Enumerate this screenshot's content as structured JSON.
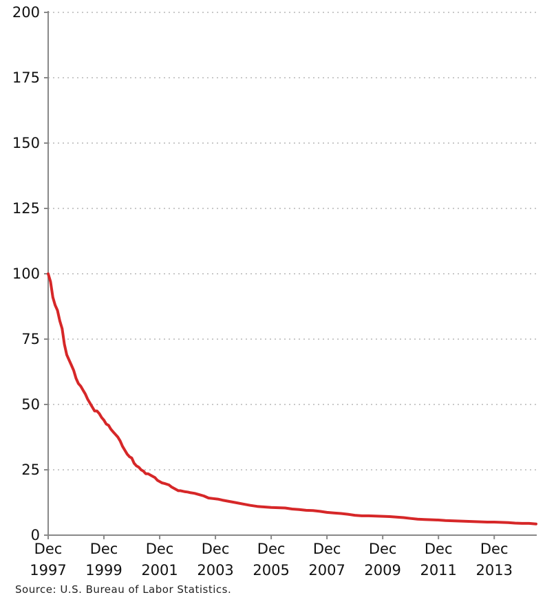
{
  "chart_data": {
    "type": "line",
    "title": "",
    "xlabel": "",
    "ylabel": "",
    "ylim": [
      0,
      200
    ],
    "yticks": [
      0,
      25,
      50,
      75,
      100,
      125,
      150,
      175,
      200
    ],
    "xlim": [
      "Dec 1997",
      "Jun 2015"
    ],
    "xticks": [
      {
        "line1": "Dec",
        "line2": "1997",
        "x": "1997-12"
      },
      {
        "line1": "Dec",
        "line2": "1999",
        "x": "1999-12"
      },
      {
        "line1": "Dec",
        "line2": "2001",
        "x": "2001-12"
      },
      {
        "line1": "Dec",
        "line2": "2003",
        "x": "2003-12"
      },
      {
        "line1": "Dec",
        "line2": "2005",
        "x": "2005-12"
      },
      {
        "line1": "Dec",
        "line2": "2007",
        "x": "2007-12"
      },
      {
        "line1": "Dec",
        "line2": "2009",
        "x": "2009-12"
      },
      {
        "line1": "Dec",
        "line2": "2011",
        "x": "2011-12"
      },
      {
        "line1": "Dec",
        "line2": "2013",
        "x": "2013-12"
      }
    ],
    "grid": "horizontal-dotted",
    "legend": "none",
    "series": [
      {
        "color": "#d62728",
        "points": [
          [
            "1997-12",
            100
          ],
          [
            "1998-01",
            97
          ],
          [
            "1998-02",
            91
          ],
          [
            "1998-03",
            88
          ],
          [
            "1998-04",
            86
          ],
          [
            "1998-05",
            82
          ],
          [
            "1998-06",
            79
          ],
          [
            "1998-07",
            73
          ],
          [
            "1998-08",
            69
          ],
          [
            "1998-09",
            67
          ],
          [
            "1998-10",
            65
          ],
          [
            "1998-11",
            63
          ],
          [
            "1998-12",
            60
          ],
          [
            "1999-01",
            58
          ],
          [
            "1999-02",
            57
          ],
          [
            "1999-03",
            55.5
          ],
          [
            "1999-04",
            54
          ],
          [
            "1999-05",
            52
          ],
          [
            "1999-06",
            50.5
          ],
          [
            "1999-07",
            49
          ],
          [
            "1999-08",
            47.5
          ],
          [
            "1999-09",
            47.5
          ],
          [
            "1999-10",
            46.5
          ],
          [
            "1999-11",
            45
          ],
          [
            "1999-12",
            44
          ],
          [
            "2000-01",
            42.5
          ],
          [
            "2000-02",
            42
          ],
          [
            "2000-03",
            40.5
          ],
          [
            "2000-04",
            39.5
          ],
          [
            "2000-05",
            38.5
          ],
          [
            "2000-06",
            37.5
          ],
          [
            "2000-07",
            36
          ],
          [
            "2000-08",
            34
          ],
          [
            "2000-09",
            32.5
          ],
          [
            "2000-10",
            31
          ],
          [
            "2000-11",
            30
          ],
          [
            "2000-12",
            29.5
          ],
          [
            "2001-01",
            27.5
          ],
          [
            "2001-02",
            26.5
          ],
          [
            "2001-03",
            26
          ],
          [
            "2001-04",
            25
          ],
          [
            "2001-05",
            24.5
          ],
          [
            "2001-06",
            23.5
          ],
          [
            "2001-07",
            23.5
          ],
          [
            "2001-08",
            23
          ],
          [
            "2001-09",
            22.5
          ],
          [
            "2001-10",
            22
          ],
          [
            "2001-11",
            21
          ],
          [
            "2001-12",
            20.5
          ],
          [
            "2002-01",
            20
          ],
          [
            "2002-02",
            19.8
          ],
          [
            "2002-03",
            19.5
          ],
          [
            "2002-04",
            19.2
          ],
          [
            "2002-05",
            18.5
          ],
          [
            "2002-06",
            18
          ],
          [
            "2002-07",
            17.5
          ],
          [
            "2002-08",
            17
          ],
          [
            "2002-09",
            17
          ],
          [
            "2002-10",
            16.8
          ],
          [
            "2002-11",
            16.6
          ],
          [
            "2002-12",
            16.5
          ],
          [
            "2003-01",
            16.3
          ],
          [
            "2003-03",
            16
          ],
          [
            "2003-05",
            15.5
          ],
          [
            "2003-07",
            15
          ],
          [
            "2003-09",
            14.2
          ],
          [
            "2003-11",
            14
          ],
          [
            "2004-01",
            13.8
          ],
          [
            "2004-03",
            13.4
          ],
          [
            "2004-06",
            12.9
          ],
          [
            "2004-09",
            12.4
          ],
          [
            "2004-12",
            11.9
          ],
          [
            "2005-03",
            11.4
          ],
          [
            "2005-06",
            11
          ],
          [
            "2005-09",
            10.8
          ],
          [
            "2005-12",
            10.6
          ],
          [
            "2006-03",
            10.5
          ],
          [
            "2006-06",
            10.4
          ],
          [
            "2006-09",
            10
          ],
          [
            "2006-12",
            9.8
          ],
          [
            "2007-03",
            9.5
          ],
          [
            "2007-06",
            9.4
          ],
          [
            "2007-09",
            9.1
          ],
          [
            "2007-12",
            8.7
          ],
          [
            "2008-03",
            8.5
          ],
          [
            "2008-06",
            8.3
          ],
          [
            "2008-09",
            8
          ],
          [
            "2008-12",
            7.6
          ],
          [
            "2009-03",
            7.4
          ],
          [
            "2009-06",
            7.4
          ],
          [
            "2009-09",
            7.3
          ],
          [
            "2009-12",
            7.2
          ],
          [
            "2010-03",
            7.1
          ],
          [
            "2010-06",
            6.9
          ],
          [
            "2010-09",
            6.7
          ],
          [
            "2010-12",
            6.4
          ],
          [
            "2011-03",
            6.1
          ],
          [
            "2011-06",
            6
          ],
          [
            "2011-09",
            5.9
          ],
          [
            "2011-12",
            5.8
          ],
          [
            "2012-03",
            5.6
          ],
          [
            "2012-06",
            5.5
          ],
          [
            "2012-09",
            5.4
          ],
          [
            "2012-12",
            5.3
          ],
          [
            "2013-03",
            5.2
          ],
          [
            "2013-06",
            5.1
          ],
          [
            "2013-09",
            5
          ],
          [
            "2013-12",
            5
          ],
          [
            "2014-03",
            4.9
          ],
          [
            "2014-06",
            4.8
          ],
          [
            "2014-09",
            4.6
          ],
          [
            "2014-12",
            4.5
          ],
          [
            "2015-03",
            4.5
          ],
          [
            "2015-06",
            4.3
          ]
        ]
      }
    ]
  },
  "source_text": "Source: U.S. Bureau of Labor Statistics."
}
